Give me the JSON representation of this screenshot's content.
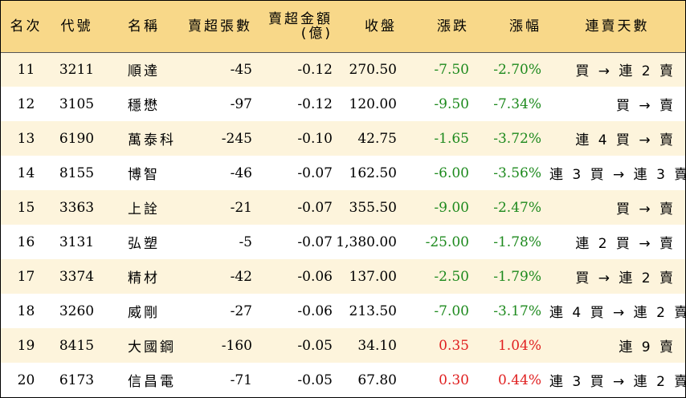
{
  "columns": [
    "名次",
    "代號",
    "名稱",
    "賣超張數",
    "賣超金額\n(億)",
    "收盤",
    "漲跌",
    "漲幅",
    "連賣天數"
  ],
  "rows": [
    {
      "rank": "11",
      "code": "3211",
      "name": "順達",
      "shares": "-45",
      "amount": "-0.12",
      "close": "270.50",
      "change": "-7.50",
      "pct": "-2.70%",
      "streak": "買 → 連 2 賣",
      "dir": "down"
    },
    {
      "rank": "12",
      "code": "3105",
      "name": "穩懋",
      "shares": "-97",
      "amount": "-0.12",
      "close": "120.00",
      "change": "-9.50",
      "pct": "-7.34%",
      "streak": "買 → 賣",
      "dir": "down"
    },
    {
      "rank": "13",
      "code": "6190",
      "name": "萬泰科",
      "shares": "-245",
      "amount": "-0.10",
      "close": "42.75",
      "change": "-1.65",
      "pct": "-3.72%",
      "streak": "連 4 買 → 賣",
      "dir": "down"
    },
    {
      "rank": "14",
      "code": "8155",
      "name": "博智",
      "shares": "-46",
      "amount": "-0.07",
      "close": "162.50",
      "change": "-6.00",
      "pct": "-3.56%",
      "streak": "連 3 買 → 連 3 賣",
      "dir": "down"
    },
    {
      "rank": "15",
      "code": "3363",
      "name": "上詮",
      "shares": "-21",
      "amount": "-0.07",
      "close": "355.50",
      "change": "-9.00",
      "pct": "-2.47%",
      "streak": "買 → 賣",
      "dir": "down"
    },
    {
      "rank": "16",
      "code": "3131",
      "name": "弘塑",
      "shares": "-5",
      "amount": "-0.07",
      "close": "1,380.00",
      "change": "-25.00",
      "pct": "-1.78%",
      "streak": "連 2 買 → 賣",
      "dir": "down"
    },
    {
      "rank": "17",
      "code": "3374",
      "name": "精材",
      "shares": "-42",
      "amount": "-0.06",
      "close": "137.00",
      "change": "-2.50",
      "pct": "-1.79%",
      "streak": "買 → 連 2 賣",
      "dir": "down"
    },
    {
      "rank": "18",
      "code": "3260",
      "name": "威剛",
      "shares": "-27",
      "amount": "-0.06",
      "close": "213.50",
      "change": "-7.00",
      "pct": "-3.17%",
      "streak": "連 4 買 → 連 2 賣",
      "dir": "down"
    },
    {
      "rank": "19",
      "code": "8415",
      "name": "大國鋼",
      "shares": "-160",
      "amount": "-0.05",
      "close": "34.10",
      "change": "0.35",
      "pct": "1.04%",
      "streak": "連 9 賣",
      "dir": "up"
    },
    {
      "rank": "20",
      "code": "6173",
      "name": "信昌電",
      "shares": "-71",
      "amount": "-0.05",
      "close": "67.80",
      "change": "0.30",
      "pct": "0.44%",
      "streak": "連 3 買 → 連 2 賣",
      "dir": "up"
    }
  ],
  "colors": {
    "header_bg": "#f8d889",
    "odd_row_bg": "#fdf4dc",
    "down": "#1e8a1e",
    "up": "#e02020"
  }
}
